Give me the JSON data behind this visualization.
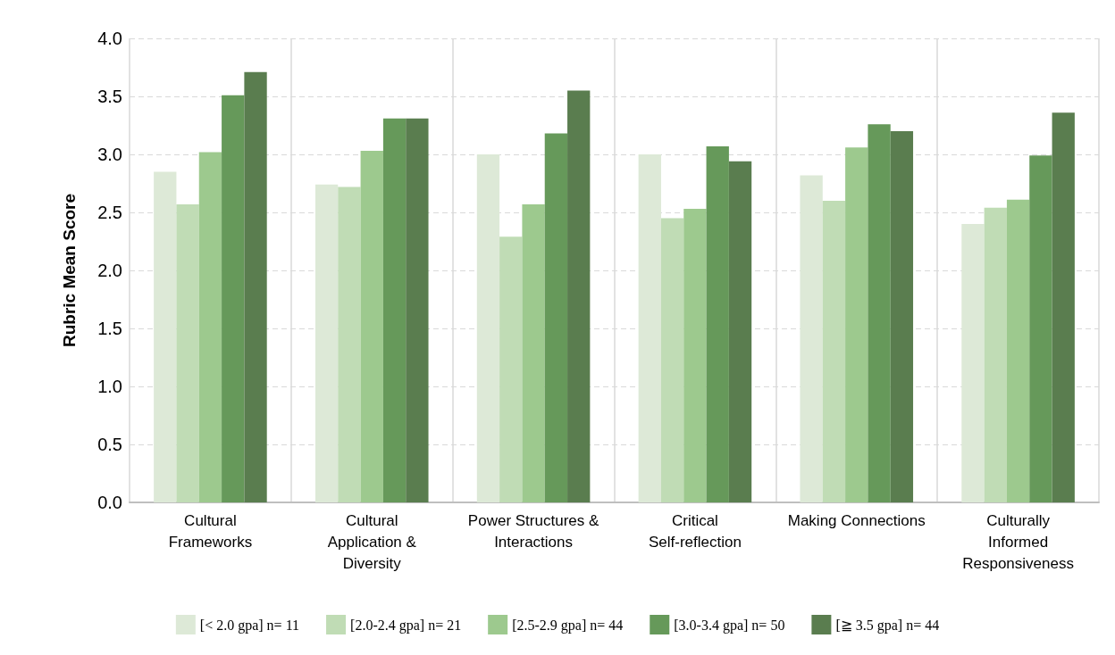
{
  "chart_data": {
    "type": "bar",
    "ylabel": "Rubric Mean Score",
    "categories": [
      "Cultural Frameworks",
      "Cultural Application & Diversity",
      "Power Structures & Interactions",
      "Critical Self-reflection",
      "Making Connections",
      "Culturally Informed Responsiveness"
    ],
    "series": [
      {
        "name": "[< 2.0 gpa] n= 11",
        "color": "#dde9d7",
        "values": [
          2.85,
          2.74,
          3.0,
          3.0,
          2.82,
          2.4
        ]
      },
      {
        "name": "[2.0-2.4 gpa] n= 21",
        "color": "#c0dcb5",
        "values": [
          2.57,
          2.72,
          2.29,
          2.45,
          2.6,
          2.54
        ]
      },
      {
        "name": "[2.5-2.9 gpa] n= 44",
        "color": "#9dc98e",
        "values": [
          3.02,
          3.03,
          2.57,
          2.53,
          3.06,
          2.61
        ]
      },
      {
        "name": "[3.0-3.4 gpa] n= 50",
        "color": "#66995a",
        "values": [
          3.51,
          3.31,
          3.18,
          3.07,
          3.26,
          2.99
        ]
      },
      {
        "name": "[≧ 3.5 gpa] n= 44",
        "color": "#5a7d4f",
        "values": [
          3.71,
          3.31,
          3.55,
          2.94,
          3.2,
          3.36
        ]
      }
    ],
    "ylim": [
      0,
      4
    ],
    "yticks": [
      {
        "value": 0,
        "label": "0.0"
      },
      {
        "value": 0.5,
        "label": "0.5"
      },
      {
        "value": 1,
        "label": "1.0"
      },
      {
        "value": 1.5,
        "label": "1.5"
      },
      {
        "value": 2,
        "label": "2.0"
      },
      {
        "value": 2.5,
        "label": "2.5"
      },
      {
        "value": 3,
        "label": "3.0"
      },
      {
        "value": 3.5,
        "label": "3.5"
      },
      {
        "value": 4,
        "label": "4.0"
      }
    ],
    "grid": true,
    "legend": "bottom"
  }
}
